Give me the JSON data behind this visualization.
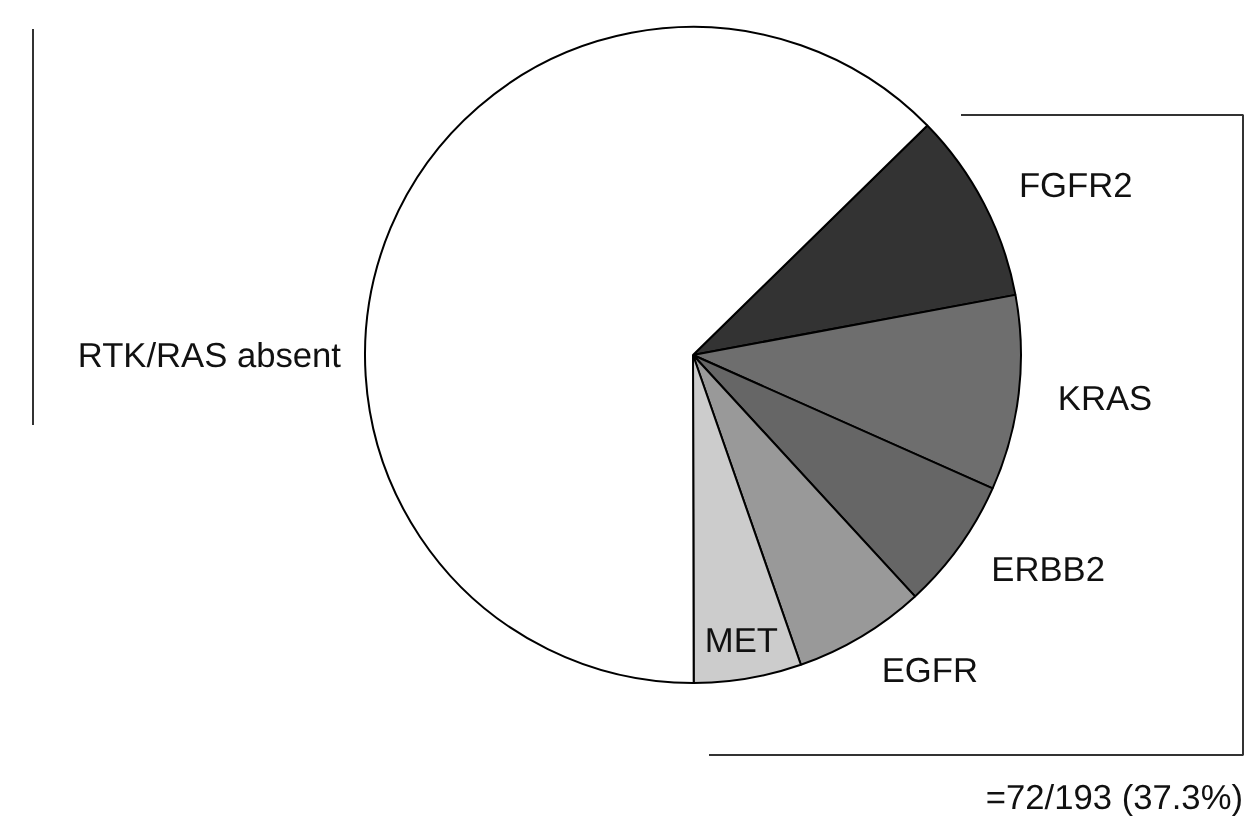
{
  "chart_data": {
    "type": "pie",
    "categories": [
      "FGFR2",
      "KRAS",
      "ERBB2",
      "EGFR",
      "MET",
      "RTK/RAS absent"
    ],
    "values": [
      9.4,
      9.6,
      6.5,
      6.5,
      5.3,
      62.7
    ],
    "colors": [
      "#333333",
      "#6e6e6e",
      "#666666",
      "#999999",
      "#cccccc",
      "#ffffff"
    ],
    "annotations": [
      "=72/193 (37.3%)"
    ]
  }
}
